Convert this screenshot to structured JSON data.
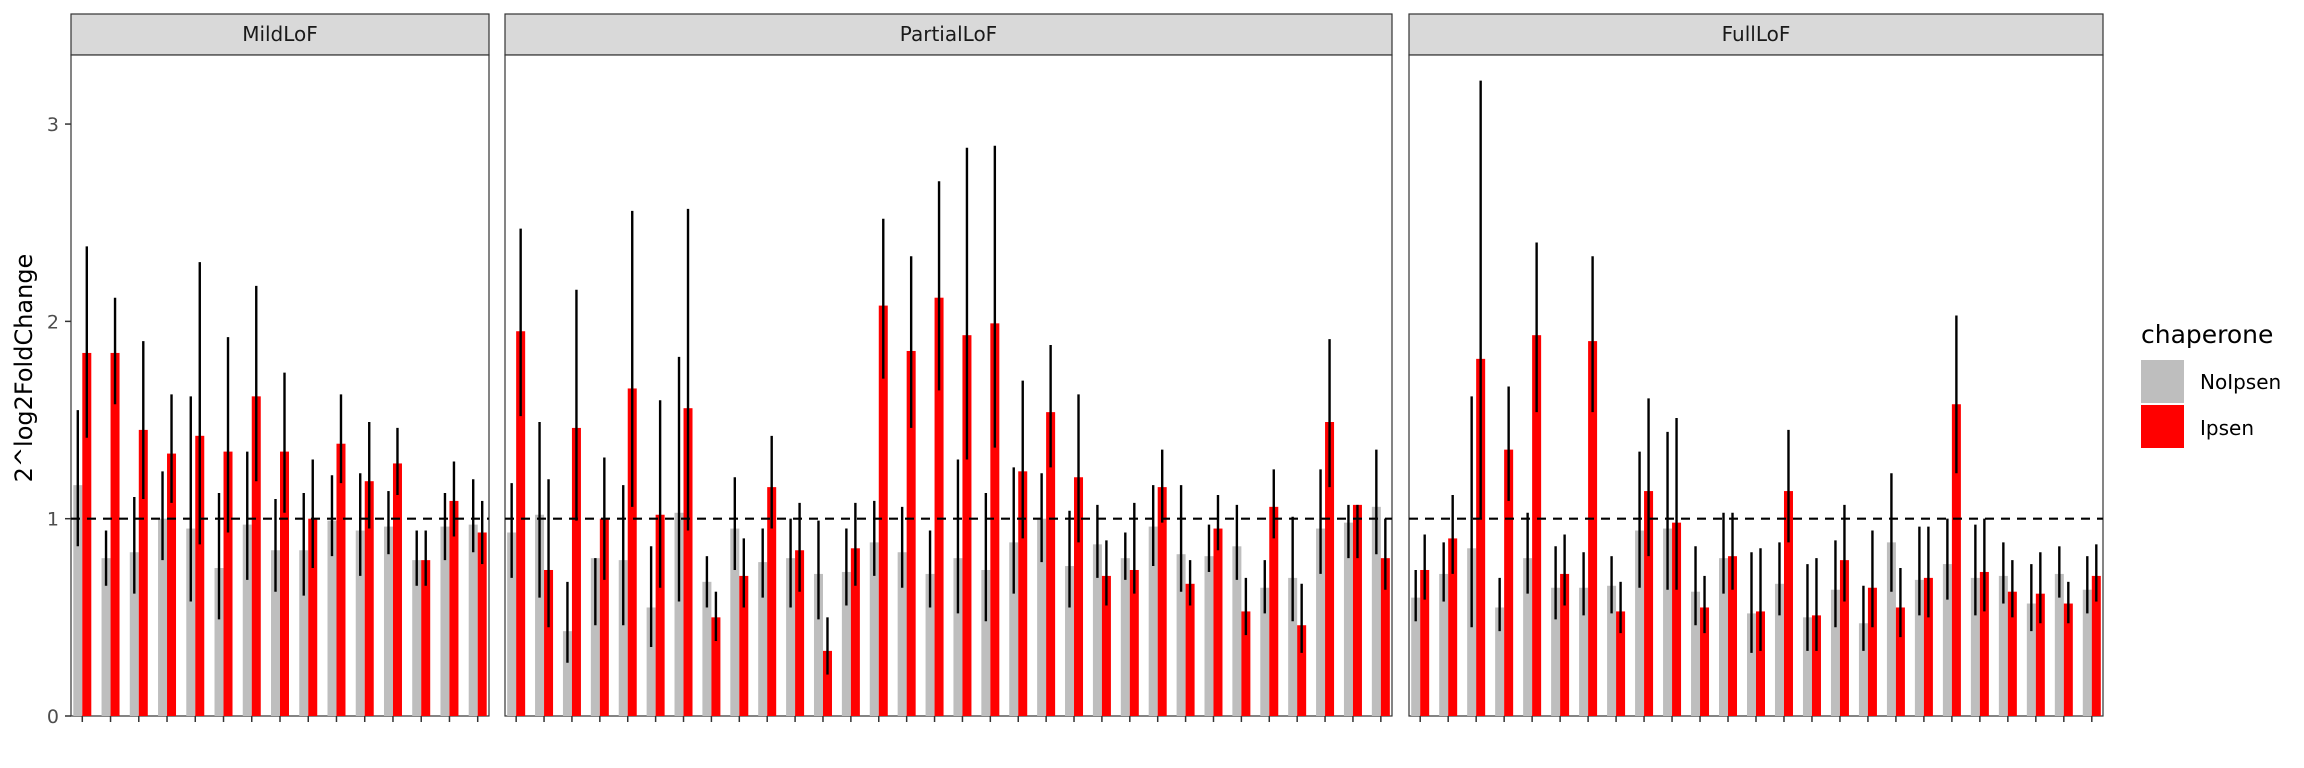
{
  "chart_data": {
    "type": "bar",
    "ylabel": "2^log2FoldChange",
    "yticks": [
      0,
      1,
      2,
      3
    ],
    "ylim": [
      0,
      3.35
    ],
    "reference_line": 1,
    "legend": {
      "title": "chaperone",
      "placement": "right",
      "items": [
        {
          "label": "NoIpsen",
          "color": "#bebebe"
        },
        {
          "label": "Ipsen",
          "color": "#ff0000"
        }
      ]
    },
    "panels": [
      {
        "strip": "MildLoF",
        "groups": [
          {
            "noipsen": {
              "value": 1.17,
              "lo": 0.86,
              "hi": 1.55
            },
            "ipsen": {
              "value": 1.84,
              "lo": 1.41,
              "hi": 2.38
            }
          },
          {
            "noipsen": {
              "value": 0.8,
              "lo": 0.66,
              "hi": 0.94
            },
            "ipsen": {
              "value": 1.84,
              "lo": 1.58,
              "hi": 2.12
            }
          },
          {
            "noipsen": {
              "value": 0.83,
              "lo": 0.62,
              "hi": 1.11
            },
            "ipsen": {
              "value": 1.45,
              "lo": 1.1,
              "hi": 1.9
            }
          },
          {
            "noipsen": {
              "value": 1.0,
              "lo": 0.79,
              "hi": 1.24
            },
            "ipsen": {
              "value": 1.33,
              "lo": 1.08,
              "hi": 1.63
            }
          },
          {
            "noipsen": {
              "value": 0.95,
              "lo": 0.58,
              "hi": 1.62
            },
            "ipsen": {
              "value": 1.42,
              "lo": 0.87,
              "hi": 2.3
            }
          },
          {
            "noipsen": {
              "value": 0.75,
              "lo": 0.49,
              "hi": 1.13
            },
            "ipsen": {
              "value": 1.34,
              "lo": 0.93,
              "hi": 1.92
            }
          },
          {
            "noipsen": {
              "value": 0.97,
              "lo": 0.69,
              "hi": 1.34
            },
            "ipsen": {
              "value": 1.62,
              "lo": 1.19,
              "hi": 2.18
            }
          },
          {
            "noipsen": {
              "value": 0.84,
              "lo": 0.63,
              "hi": 1.1
            },
            "ipsen": {
              "value": 1.34,
              "lo": 1.03,
              "hi": 1.74
            }
          },
          {
            "noipsen": {
              "value": 0.84,
              "lo": 0.61,
              "hi": 1.13
            },
            "ipsen": {
              "value": 1.0,
              "lo": 0.75,
              "hi": 1.3
            }
          },
          {
            "noipsen": {
              "value": 0.99,
              "lo": 0.81,
              "hi": 1.22
            },
            "ipsen": {
              "value": 1.38,
              "lo": 1.18,
              "hi": 1.63
            }
          },
          {
            "noipsen": {
              "value": 0.94,
              "lo": 0.71,
              "hi": 1.23
            },
            "ipsen": {
              "value": 1.19,
              "lo": 0.95,
              "hi": 1.49
            }
          },
          {
            "noipsen": {
              "value": 0.96,
              "lo": 0.82,
              "hi": 1.14
            },
            "ipsen": {
              "value": 1.28,
              "lo": 1.12,
              "hi": 1.46
            }
          },
          {
            "noipsen": {
              "value": 0.79,
              "lo": 0.66,
              "hi": 0.94
            },
            "ipsen": {
              "value": 0.79,
              "lo": 0.66,
              "hi": 0.94
            }
          },
          {
            "noipsen": {
              "value": 0.96,
              "lo": 0.79,
              "hi": 1.13
            },
            "ipsen": {
              "value": 1.09,
              "lo": 0.91,
              "hi": 1.29
            }
          },
          {
            "noipsen": {
              "value": 0.97,
              "lo": 0.83,
              "hi": 1.2
            },
            "ipsen": {
              "value": 0.93,
              "lo": 0.77,
              "hi": 1.09
            }
          }
        ]
      },
      {
        "strip": "PartialLoF",
        "groups": [
          {
            "noipsen": {
              "value": 0.93,
              "lo": 0.7,
              "hi": 1.18
            },
            "ipsen": {
              "value": 1.95,
              "lo": 1.52,
              "hi": 2.47
            }
          },
          {
            "noipsen": {
              "value": 1.02,
              "lo": 0.6,
              "hi": 1.49
            },
            "ipsen": {
              "value": 0.74,
              "lo": 0.45,
              "hi": 1.2
            }
          },
          {
            "noipsen": {
              "value": 0.43,
              "lo": 0.27,
              "hi": 0.68
            },
            "ipsen": {
              "value": 1.46,
              "lo": 0.99,
              "hi": 2.16
            }
          },
          {
            "noipsen": {
              "value": 0.8,
              "lo": 0.46,
              "hi": 0.8
            },
            "ipsen": {
              "value": 1.0,
              "lo": 0.69,
              "hi": 1.31
            }
          },
          {
            "noipsen": {
              "value": 0.79,
              "lo": 0.46,
              "hi": 1.17
            },
            "ipsen": {
              "value": 1.66,
              "lo": 1.06,
              "hi": 2.56
            }
          },
          {
            "noipsen": {
              "value": 0.55,
              "lo": 0.35,
              "hi": 0.86
            },
            "ipsen": {
              "value": 1.02,
              "lo": 0.65,
              "hi": 1.6
            }
          },
          {
            "noipsen": {
              "value": 1.03,
              "lo": 0.58,
              "hi": 1.82
            },
            "ipsen": {
              "value": 1.56,
              "lo": 0.94,
              "hi": 2.57
            }
          },
          {
            "noipsen": {
              "value": 0.68,
              "lo": 0.55,
              "hi": 0.81
            },
            "ipsen": {
              "value": 0.5,
              "lo": 0.38,
              "hi": 0.63
            }
          },
          {
            "noipsen": {
              "value": 0.95,
              "lo": 0.74,
              "hi": 1.21
            },
            "ipsen": {
              "value": 0.71,
              "lo": 0.55,
              "hi": 0.9
            }
          },
          {
            "noipsen": {
              "value": 0.78,
              "lo": 0.6,
              "hi": 0.95
            },
            "ipsen": {
              "value": 1.16,
              "lo": 0.95,
              "hi": 1.42
            }
          },
          {
            "noipsen": {
              "value": 0.8,
              "lo": 0.55,
              "hi": 1.0
            },
            "ipsen": {
              "value": 0.84,
              "lo": 0.63,
              "hi": 1.08
            }
          },
          {
            "noipsen": {
              "value": 0.72,
              "lo": 0.49,
              "hi": 0.99
            },
            "ipsen": {
              "value": 0.33,
              "lo": 0.21,
              "hi": 0.5
            }
          },
          {
            "noipsen": {
              "value": 0.73,
              "lo": 0.56,
              "hi": 0.95
            },
            "ipsen": {
              "value": 0.85,
              "lo": 0.66,
              "hi": 1.08
            }
          },
          {
            "noipsen": {
              "value": 0.88,
              "lo": 0.71,
              "hi": 1.09
            },
            "ipsen": {
              "value": 2.08,
              "lo": 1.71,
              "hi": 2.52
            }
          },
          {
            "noipsen": {
              "value": 0.83,
              "lo": 0.65,
              "hi": 1.06
            },
            "ipsen": {
              "value": 1.85,
              "lo": 1.46,
              "hi": 2.33
            }
          },
          {
            "noipsen": {
              "value": 0.72,
              "lo": 0.55,
              "hi": 0.94
            },
            "ipsen": {
              "value": 2.12,
              "lo": 1.65,
              "hi": 2.71
            }
          },
          {
            "noipsen": {
              "value": 0.8,
              "lo": 0.52,
              "hi": 1.3
            },
            "ipsen": {
              "value": 1.93,
              "lo": 1.3,
              "hi": 2.88
            }
          },
          {
            "noipsen": {
              "value": 0.74,
              "lo": 0.48,
              "hi": 1.13
            },
            "ipsen": {
              "value": 1.99,
              "lo": 1.36,
              "hi": 2.89
            }
          },
          {
            "noipsen": {
              "value": 0.88,
              "lo": 0.62,
              "hi": 1.26
            },
            "ipsen": {
              "value": 1.24,
              "lo": 0.9,
              "hi": 1.7
            }
          },
          {
            "noipsen": {
              "value": 1.0,
              "lo": 0.78,
              "hi": 1.23
            },
            "ipsen": {
              "value": 1.54,
              "lo": 1.26,
              "hi": 1.88
            }
          },
          {
            "noipsen": {
              "value": 0.76,
              "lo": 0.55,
              "hi": 1.04
            },
            "ipsen": {
              "value": 1.21,
              "lo": 0.88,
              "hi": 1.63
            }
          },
          {
            "noipsen": {
              "value": 0.87,
              "lo": 0.7,
              "hi": 1.07
            },
            "ipsen": {
              "value": 0.71,
              "lo": 0.56,
              "hi": 0.89
            }
          },
          {
            "noipsen": {
              "value": 0.8,
              "lo": 0.69,
              "hi": 0.93
            },
            "ipsen": {
              "value": 0.74,
              "lo": 0.62,
              "hi": 1.08
            }
          },
          {
            "noipsen": {
              "value": 0.96,
              "lo": 0.76,
              "hi": 1.17
            },
            "ipsen": {
              "value": 1.16,
              "lo": 0.98,
              "hi": 1.35
            }
          },
          {
            "noipsen": {
              "value": 0.82,
              "lo": 0.63,
              "hi": 1.17
            },
            "ipsen": {
              "value": 0.67,
              "lo": 0.56,
              "hi": 0.79
            }
          },
          {
            "noipsen": {
              "value": 0.81,
              "lo": 0.73,
              "hi": 0.97
            },
            "ipsen": {
              "value": 0.95,
              "lo": 0.84,
              "hi": 1.12
            }
          },
          {
            "noipsen": {
              "value": 0.86,
              "lo": 0.69,
              "hi": 1.07
            },
            "ipsen": {
              "value": 0.53,
              "lo": 0.41,
              "hi": 0.7
            }
          },
          {
            "noipsen": {
              "value": 0.65,
              "lo": 0.52,
              "hi": 0.79
            },
            "ipsen": {
              "value": 1.06,
              "lo": 0.9,
              "hi": 1.25
            }
          },
          {
            "noipsen": {
              "value": 0.7,
              "lo": 0.48,
              "hi": 1.01
            },
            "ipsen": {
              "value": 0.46,
              "lo": 0.32,
              "hi": 0.67
            }
          },
          {
            "noipsen": {
              "value": 0.95,
              "lo": 0.72,
              "hi": 1.25
            },
            "ipsen": {
              "value": 1.49,
              "lo": 1.16,
              "hi": 1.91
            }
          },
          {
            "noipsen": {
              "value": 0.98,
              "lo": 0.8,
              "hi": 1.07
            },
            "ipsen": {
              "value": 1.07,
              "lo": 0.8,
              "hi": 1.07
            }
          },
          {
            "noipsen": {
              "value": 1.06,
              "lo": 0.82,
              "hi": 1.35
            },
            "ipsen": {
              "value": 0.8,
              "lo": 0.64,
              "hi": 1.0
            }
          }
        ]
      },
      {
        "strip": "FullLoF",
        "groups": [
          {
            "noipsen": {
              "value": 0.6,
              "lo": 0.48,
              "hi": 0.74
            },
            "ipsen": {
              "value": 0.74,
              "lo": 0.59,
              "hi": 0.92
            }
          },
          {
            "noipsen": {
              "value": 0.72,
              "lo": 0.58,
              "hi": 0.88
            },
            "ipsen": {
              "value": 0.9,
              "lo": 0.72,
              "hi": 1.12
            }
          },
          {
            "noipsen": {
              "value": 0.85,
              "lo": 0.45,
              "hi": 1.62
            },
            "ipsen": {
              "value": 1.81,
              "lo": 1.0,
              "hi": 3.22
            }
          },
          {
            "noipsen": {
              "value": 0.55,
              "lo": 0.43,
              "hi": 0.7
            },
            "ipsen": {
              "value": 1.35,
              "lo": 1.09,
              "hi": 1.67
            }
          },
          {
            "noipsen": {
              "value": 0.8,
              "lo": 0.62,
              "hi": 1.03
            },
            "ipsen": {
              "value": 1.93,
              "lo": 1.54,
              "hi": 2.4
            }
          },
          {
            "noipsen": {
              "value": 0.65,
              "lo": 0.49,
              "hi": 0.86
            },
            "ipsen": {
              "value": 0.72,
              "lo": 0.56,
              "hi": 0.92
            }
          },
          {
            "noipsen": {
              "value": 0.65,
              "lo": 0.51,
              "hi": 0.83
            },
            "ipsen": {
              "value": 1.9,
              "lo": 1.54,
              "hi": 2.33
            }
          },
          {
            "noipsen": {
              "value": 0.66,
              "lo": 0.52,
              "hi": 0.81
            },
            "ipsen": {
              "value": 0.53,
              "lo": 0.42,
              "hi": 0.68
            }
          },
          {
            "noipsen": {
              "value": 0.94,
              "lo": 0.65,
              "hi": 1.34
            },
            "ipsen": {
              "value": 1.14,
              "lo": 0.81,
              "hi": 1.61
            }
          },
          {
            "noipsen": {
              "value": 0.95,
              "lo": 0.64,
              "hi": 1.44
            },
            "ipsen": {
              "value": 0.98,
              "lo": 0.64,
              "hi": 1.51
            }
          },
          {
            "noipsen": {
              "value": 0.63,
              "lo": 0.46,
              "hi": 0.86
            },
            "ipsen": {
              "value": 0.55,
              "lo": 0.42,
              "hi": 0.71
            }
          },
          {
            "noipsen": {
              "value": 0.8,
              "lo": 0.62,
              "hi": 1.03
            },
            "ipsen": {
              "value": 0.81,
              "lo": 0.64,
              "hi": 1.03
            }
          },
          {
            "noipsen": {
              "value": 0.52,
              "lo": 0.32,
              "hi": 0.83
            },
            "ipsen": {
              "value": 0.53,
              "lo": 0.33,
              "hi": 0.85
            }
          },
          {
            "noipsen": {
              "value": 0.67,
              "lo": 0.51,
              "hi": 0.88
            },
            "ipsen": {
              "value": 1.14,
              "lo": 0.88,
              "hi": 1.45
            }
          },
          {
            "noipsen": {
              "value": 0.5,
              "lo": 0.33,
              "hi": 0.77
            },
            "ipsen": {
              "value": 0.51,
              "lo": 0.33,
              "hi": 0.8
            }
          },
          {
            "noipsen": {
              "value": 0.64,
              "lo": 0.45,
              "hi": 0.89
            },
            "ipsen": {
              "value": 0.79,
              "lo": 0.58,
              "hi": 1.07
            }
          },
          {
            "noipsen": {
              "value": 0.47,
              "lo": 0.33,
              "hi": 0.66
            },
            "ipsen": {
              "value": 0.65,
              "lo": 0.45,
              "hi": 0.94
            }
          },
          {
            "noipsen": {
              "value": 0.88,
              "lo": 0.63,
              "hi": 1.23
            },
            "ipsen": {
              "value": 0.55,
              "lo": 0.4,
              "hi": 0.75
            }
          },
          {
            "noipsen": {
              "value": 0.69,
              "lo": 0.51,
              "hi": 0.96
            },
            "ipsen": {
              "value": 0.7,
              "lo": 0.5,
              "hi": 0.96
            }
          },
          {
            "noipsen": {
              "value": 0.77,
              "lo": 0.59,
              "hi": 1.0
            },
            "ipsen": {
              "value": 1.58,
              "lo": 1.23,
              "hi": 2.03
            }
          },
          {
            "noipsen": {
              "value": 0.7,
              "lo": 0.51,
              "hi": 0.97
            },
            "ipsen": {
              "value": 0.73,
              "lo": 0.53,
              "hi": 1.0
            }
          },
          {
            "noipsen": {
              "value": 0.71,
              "lo": 0.57,
              "hi": 0.88
            },
            "ipsen": {
              "value": 0.63,
              "lo": 0.5,
              "hi": 0.79
            }
          },
          {
            "noipsen": {
              "value": 0.57,
              "lo": 0.43,
              "hi": 0.77
            },
            "ipsen": {
              "value": 0.62,
              "lo": 0.47,
              "hi": 0.83
            }
          },
          {
            "noipsen": {
              "value": 0.72,
              "lo": 0.6,
              "hi": 0.86
            },
            "ipsen": {
              "value": 0.57,
              "lo": 0.47,
              "hi": 0.68
            }
          },
          {
            "noipsen": {
              "value": 0.64,
              "lo": 0.52,
              "hi": 0.81
            },
            "ipsen": {
              "value": 0.71,
              "lo": 0.58,
              "hi": 0.87
            }
          }
        ]
      }
    ]
  }
}
